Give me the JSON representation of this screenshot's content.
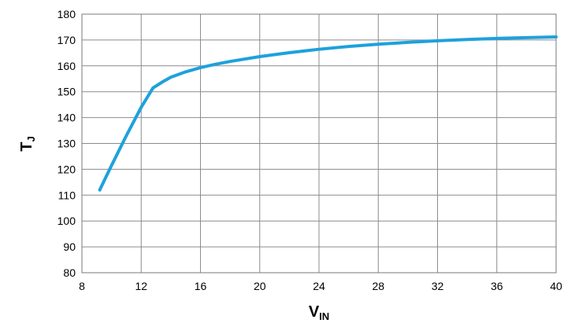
{
  "chart_data": {
    "type": "line",
    "xlabel": "V",
    "xlabel_sub": "IN",
    "ylabel": "T",
    "ylabel_sub": "J",
    "xlim": [
      8,
      40
    ],
    "ylim": [
      80,
      180
    ],
    "xticks": [
      8,
      12,
      16,
      20,
      24,
      28,
      32,
      36,
      40
    ],
    "yticks": [
      80,
      90,
      100,
      110,
      120,
      130,
      140,
      150,
      160,
      170,
      180
    ],
    "grid": true,
    "series": [
      {
        "color": "#1ea1dc",
        "x": [
          9.2,
          10,
          11,
          12,
          12.8,
          13.5,
          14,
          15,
          16,
          17,
          18,
          20,
          22,
          24,
          26,
          28,
          30,
          32,
          34,
          36,
          38,
          40
        ],
        "y": [
          112,
          121.5,
          133,
          144,
          151.5,
          154,
          155.6,
          157.7,
          159.3,
          160.6,
          161.7,
          163.6,
          165.1,
          166.4,
          167.5,
          168.4,
          169.1,
          169.7,
          170.2,
          170.6,
          170.9,
          171.2
        ]
      }
    ]
  }
}
